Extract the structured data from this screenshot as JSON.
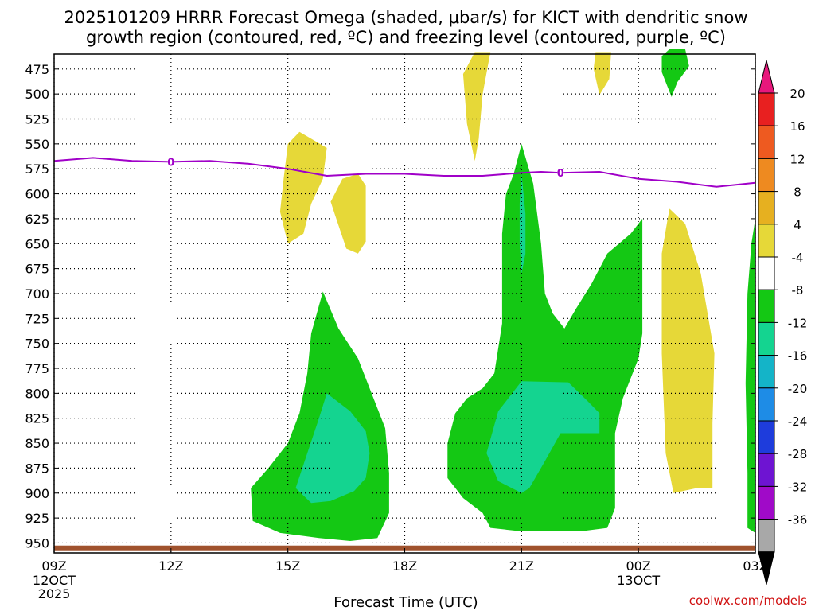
{
  "chart_data": {
    "type": "contour",
    "title_line1": "2025101209 HRRR Forecast Omega (shaded, μbar/s) for KICT with dendritic snow",
    "title_line2": "growth region (contoured, red, ºC) and freezing level (contoured, purple, ºC)",
    "xlabel": "Forecast Time (UTC)",
    "credit": "coolwx.com/models",
    "x_range_hours": [
      0,
      18
    ],
    "y_range_hpa": [
      460,
      960
    ],
    "y_ticks": [
      475,
      500,
      525,
      550,
      575,
      600,
      625,
      650,
      675,
      700,
      725,
      750,
      775,
      800,
      825,
      850,
      875,
      900,
      925,
      950
    ],
    "x_ticks": [
      {
        "hour": 0,
        "label": "09Z",
        "sub1": "12OCT",
        "sub2": "2025"
      },
      {
        "hour": 3,
        "label": "12Z",
        "sub1": "",
        "sub2": ""
      },
      {
        "hour": 6,
        "label": "15Z",
        "sub1": "",
        "sub2": ""
      },
      {
        "hour": 9,
        "label": "18Z",
        "sub1": "",
        "sub2": ""
      },
      {
        "hour": 12,
        "label": "21Z",
        "sub1": "",
        "sub2": ""
      },
      {
        "hour": 15,
        "label": "00Z",
        "sub1": "13OCT",
        "sub2": ""
      },
      {
        "hour": 18,
        "label": "03Z",
        "sub1": "",
        "sub2": ""
      }
    ],
    "colorbar": {
      "labels": [
        "20",
        "16",
        "12",
        "8",
        "4",
        "-4",
        "-8",
        "-12",
        "-16",
        "-20",
        "-24",
        "-28",
        "-32",
        "-36"
      ],
      "bins": [
        {
          "color": "#e8187c"
        },
        {
          "color": "#e82020"
        },
        {
          "color": "#ee5a20"
        },
        {
          "color": "#ee8a20"
        },
        {
          "color": "#e6b020"
        },
        {
          "color": "#e6d838"
        },
        {
          "color": "#ffffff"
        },
        {
          "color": "#14c814"
        },
        {
          "color": "#14d490"
        },
        {
          "color": "#14b4c8"
        },
        {
          "color": "#1e8ce6"
        },
        {
          "color": "#1e3cdc"
        },
        {
          "color": "#6e14d2"
        },
        {
          "color": "#a00ac8"
        },
        {
          "color": "#a8a8a8"
        },
        {
          "color": "#000000"
        }
      ]
    },
    "freezing_level": {
      "color": "#a000c8",
      "label": "0",
      "label_hours": [
        3,
        13
      ],
      "points": [
        [
          0,
          567
        ],
        [
          1,
          564
        ],
        [
          2,
          567
        ],
        [
          3,
          568
        ],
        [
          4,
          567
        ],
        [
          5,
          570
        ],
        [
          6,
          575
        ],
        [
          7,
          582
        ],
        [
          8,
          580
        ],
        [
          9,
          580
        ],
        [
          10,
          582
        ],
        [
          11,
          582
        ],
        [
          12,
          579
        ],
        [
          12.5,
          578
        ],
        [
          13,
          579
        ],
        [
          14,
          578
        ],
        [
          15,
          585
        ],
        [
          16,
          588
        ],
        [
          17,
          593
        ],
        [
          18,
          589
        ]
      ]
    },
    "surface_band": {
      "color": "#a0522d",
      "pressure_hpa": 955
    },
    "omega_regions": [
      {
        "value": "4 to 8",
        "color": "#e6d838",
        "points": [
          [
            6.3,
            538
          ],
          [
            7.0,
            554
          ],
          [
            6.9,
            585
          ],
          [
            6.6,
            610
          ],
          [
            6.4,
            640
          ],
          [
            6.0,
            650
          ],
          [
            5.8,
            618
          ],
          [
            5.9,
            582
          ],
          [
            6.0,
            550
          ]
        ]
      },
      {
        "value": "4 to 8",
        "color": "#e6d838",
        "points": [
          [
            7.8,
            580
          ],
          [
            8.0,
            592
          ],
          [
            8.0,
            620
          ],
          [
            8.0,
            648
          ],
          [
            7.8,
            660
          ],
          [
            7.5,
            655
          ],
          [
            7.2,
            620
          ],
          [
            7.1,
            608
          ],
          [
            7.4,
            585
          ]
        ]
      },
      {
        "value": "4 to 8",
        "color": "#e6d838",
        "points": [
          [
            10.8,
            458
          ],
          [
            11.2,
            458
          ],
          [
            11.0,
            500
          ],
          [
            10.9,
            545
          ],
          [
            10.8,
            567
          ],
          [
            10.6,
            530
          ],
          [
            10.5,
            480
          ]
        ]
      },
      {
        "value": "4 to 8",
        "color": "#e6d838",
        "points": [
          [
            13.9,
            458
          ],
          [
            14.3,
            458
          ],
          [
            14.25,
            485
          ],
          [
            14.0,
            501
          ],
          [
            13.85,
            475
          ]
        ]
      },
      {
        "value": "4 to 8",
        "color": "#e6d838",
        "points": [
          [
            15.8,
            615
          ],
          [
            16.2,
            630
          ],
          [
            16.6,
            680
          ],
          [
            16.95,
            760
          ],
          [
            16.9,
            830
          ],
          [
            16.9,
            895
          ],
          [
            16.5,
            895
          ],
          [
            15.9,
            900
          ],
          [
            15.7,
            860
          ],
          [
            15.6,
            760
          ],
          [
            15.6,
            660
          ],
          [
            15.75,
            625
          ]
        ]
      },
      {
        "value": "-4 to -8",
        "color": "#14c814",
        "points": [
          [
            6.9,
            698
          ],
          [
            7.3,
            735
          ],
          [
            7.8,
            765
          ],
          [
            8.2,
            805
          ],
          [
            8.5,
            835
          ],
          [
            8.6,
            880
          ],
          [
            8.6,
            920
          ],
          [
            8.3,
            945
          ],
          [
            7.6,
            948
          ],
          [
            6.8,
            945
          ],
          [
            5.8,
            940
          ],
          [
            5.1,
            928
          ],
          [
            5.05,
            895
          ],
          [
            5.5,
            875
          ],
          [
            6.0,
            850
          ],
          [
            6.3,
            820
          ],
          [
            6.5,
            780
          ],
          [
            6.6,
            740
          ]
        ]
      },
      {
        "value": "-8 to -12",
        "color": "#14d490",
        "points": [
          [
            7.0,
            800
          ],
          [
            7.6,
            818
          ],
          [
            8.0,
            838
          ],
          [
            8.1,
            860
          ],
          [
            8.0,
            885
          ],
          [
            7.7,
            898
          ],
          [
            7.1,
            908
          ],
          [
            6.6,
            910
          ],
          [
            6.2,
            895
          ],
          [
            6.5,
            860
          ],
          [
            6.8,
            825
          ]
        ]
      },
      {
        "value": "-4 to -8",
        "color": "#14c814",
        "points": [
          [
            12.0,
            550
          ],
          [
            12.3,
            590
          ],
          [
            12.5,
            650
          ],
          [
            12.6,
            700
          ],
          [
            12.8,
            720
          ],
          [
            13.1,
            735
          ],
          [
            13.4,
            715
          ],
          [
            13.8,
            690
          ],
          [
            14.2,
            660
          ],
          [
            14.8,
            640
          ],
          [
            15.1,
            625
          ],
          [
            15.1,
            680
          ],
          [
            15.1,
            740
          ],
          [
            15.0,
            765
          ],
          [
            14.6,
            805
          ],
          [
            14.4,
            840
          ],
          [
            14.4,
            880
          ],
          [
            14.4,
            915
          ],
          [
            14.2,
            935
          ],
          [
            13.6,
            938
          ],
          [
            12.8,
            938
          ],
          [
            11.9,
            938
          ],
          [
            11.2,
            935
          ],
          [
            11.0,
            920
          ],
          [
            10.5,
            905
          ],
          [
            10.1,
            885
          ],
          [
            10.1,
            850
          ],
          [
            10.3,
            820
          ],
          [
            10.6,
            805
          ],
          [
            11.0,
            795
          ],
          [
            11.3,
            780
          ],
          [
            11.5,
            730
          ],
          [
            11.5,
            640
          ],
          [
            11.6,
            600
          ],
          [
            11.8,
            580
          ]
        ]
      },
      {
        "value": "-8 to -12",
        "color": "#14d490",
        "points": [
          [
            12.0,
            580
          ],
          [
            12.1,
            620
          ],
          [
            12.1,
            660
          ],
          [
            12.0,
            680
          ],
          [
            11.95,
            650
          ],
          [
            11.95,
            610
          ]
        ]
      },
      {
        "value": "-8 to -12",
        "color": "#14d490",
        "points": [
          [
            12.0,
            788
          ],
          [
            13.2,
            789
          ],
          [
            13.7,
            808
          ],
          [
            14.0,
            820
          ],
          [
            14.0,
            840
          ],
          [
            13.0,
            840
          ],
          [
            12.6,
            868
          ],
          [
            12.2,
            895
          ],
          [
            12.0,
            900
          ],
          [
            11.4,
            888
          ],
          [
            11.1,
            860
          ],
          [
            11.4,
            818
          ],
          [
            11.8,
            798
          ]
        ]
      },
      {
        "value": "-4 to -8",
        "color": "#14c814",
        "points": [
          [
            15.8,
            455
          ],
          [
            16.2,
            455
          ],
          [
            16.3,
            472
          ],
          [
            16.0,
            488
          ],
          [
            15.85,
            503
          ],
          [
            15.6,
            478
          ],
          [
            15.6,
            462
          ]
        ]
      },
      {
        "value": "-4 to -8",
        "color": "#14c814",
        "points": [
          [
            18.0,
            625
          ],
          [
            18.0,
            940
          ],
          [
            17.8,
            935
          ],
          [
            17.8,
            880
          ],
          [
            17.75,
            790
          ],
          [
            17.8,
            700
          ],
          [
            17.9,
            650
          ]
        ]
      }
    ]
  }
}
